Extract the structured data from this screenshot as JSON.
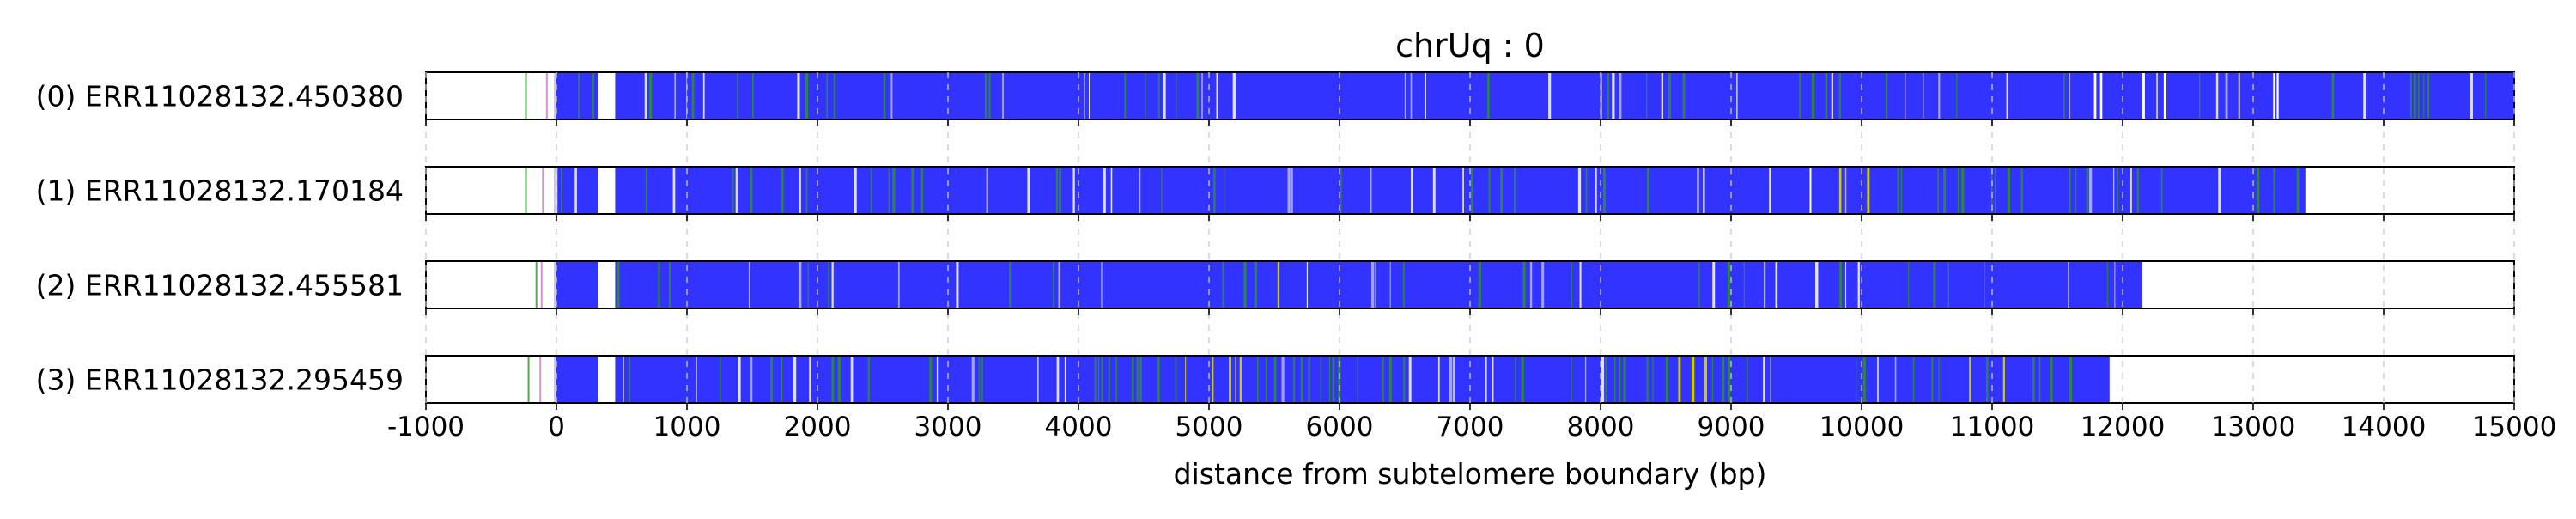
{
  "chart_data": {
    "type": "bar",
    "title": "chrUq : 0",
    "xlabel": "distance from subtelomere boundary (bp)",
    "ylabel": "",
    "xlim": [
      -1000,
      15000
    ],
    "xticks": [
      -1000,
      0,
      1000,
      2000,
      3000,
      4000,
      5000,
      6000,
      7000,
      8000,
      9000,
      10000,
      11000,
      12000,
      13000,
      14000,
      15000
    ],
    "xtick_labels": [
      "-1000",
      "0",
      "1000",
      "2000",
      "3000",
      "4000",
      "5000",
      "6000",
      "7000",
      "8000",
      "9000",
      "10000",
      "11000",
      "12000",
      "13000",
      "14000",
      "15000"
    ],
    "grid": {
      "x": true,
      "style": "dashed"
    },
    "colors": {
      "main": "#3333ff",
      "secondary": "#2f8f2f",
      "highlight": "#d9d900",
      "gap": "#ffffff",
      "light": "#b8b8ff",
      "accent": "#cc77cc",
      "grid": "#c8c8c8"
    },
    "tracks": [
      {
        "label": "(0) ERR11028132.450380",
        "read_end": 15000,
        "sparse_marks": [
          -240,
          -80,
          -20,
          20,
          60
        ],
        "empty_gaps": [
          [
            320,
            450
          ]
        ],
        "green_dense": [
          [
            1900,
            2300
          ],
          [
            14200,
            14450
          ]
        ],
        "yellow_dense": [],
        "white_dense": [
          [
            11650,
            11950
          ],
          [
            12100,
            12400
          ],
          [
            12800,
            13200
          ]
        ]
      },
      {
        "label": "(1) ERR11028132.170184",
        "read_end": 13400,
        "sparse_marks": [
          -240,
          -110,
          -20,
          30,
          80,
          140
        ],
        "empty_gaps": [
          [
            320,
            450
          ]
        ],
        "green_dense": [
          [
            2400,
            2900
          ],
          [
            4600,
            5200
          ],
          [
            10200,
            10800
          ],
          [
            12800,
            13200
          ]
        ],
        "yellow_dense": [
          [
            9800,
            10200
          ]
        ],
        "white_dense": [
          [
            9600,
            9800
          ]
        ]
      },
      {
        "label": "(2) ERR11028132.455581",
        "read_end": 12150,
        "sparse_marks": [
          -160,
          -120,
          -20,
          20
        ],
        "empty_gaps": [
          [
            320,
            450
          ]
        ],
        "green_dense": [
          [
            5200,
            5700
          ],
          [
            10300,
            11000
          ]
        ],
        "yellow_dense": [
          [
            5300,
            5600
          ],
          [
            10600,
            10900
          ]
        ],
        "white_dense": []
      },
      {
        "label": "(3) ERR11028132.295459",
        "read_end": 11900,
        "sparse_marks": [
          -220,
          -130,
          -20,
          20,
          80
        ],
        "empty_gaps": [
          [
            320,
            450
          ]
        ],
        "green_dense": [
          [
            4000,
            5500
          ],
          [
            5600,
            6500
          ],
          [
            8100,
            9200
          ],
          [
            10300,
            11700
          ]
        ],
        "yellow_dense": [
          [
            4800,
            5300
          ],
          [
            8400,
            8900
          ],
          [
            10700,
            11300
          ]
        ],
        "white_dense": []
      }
    ]
  }
}
